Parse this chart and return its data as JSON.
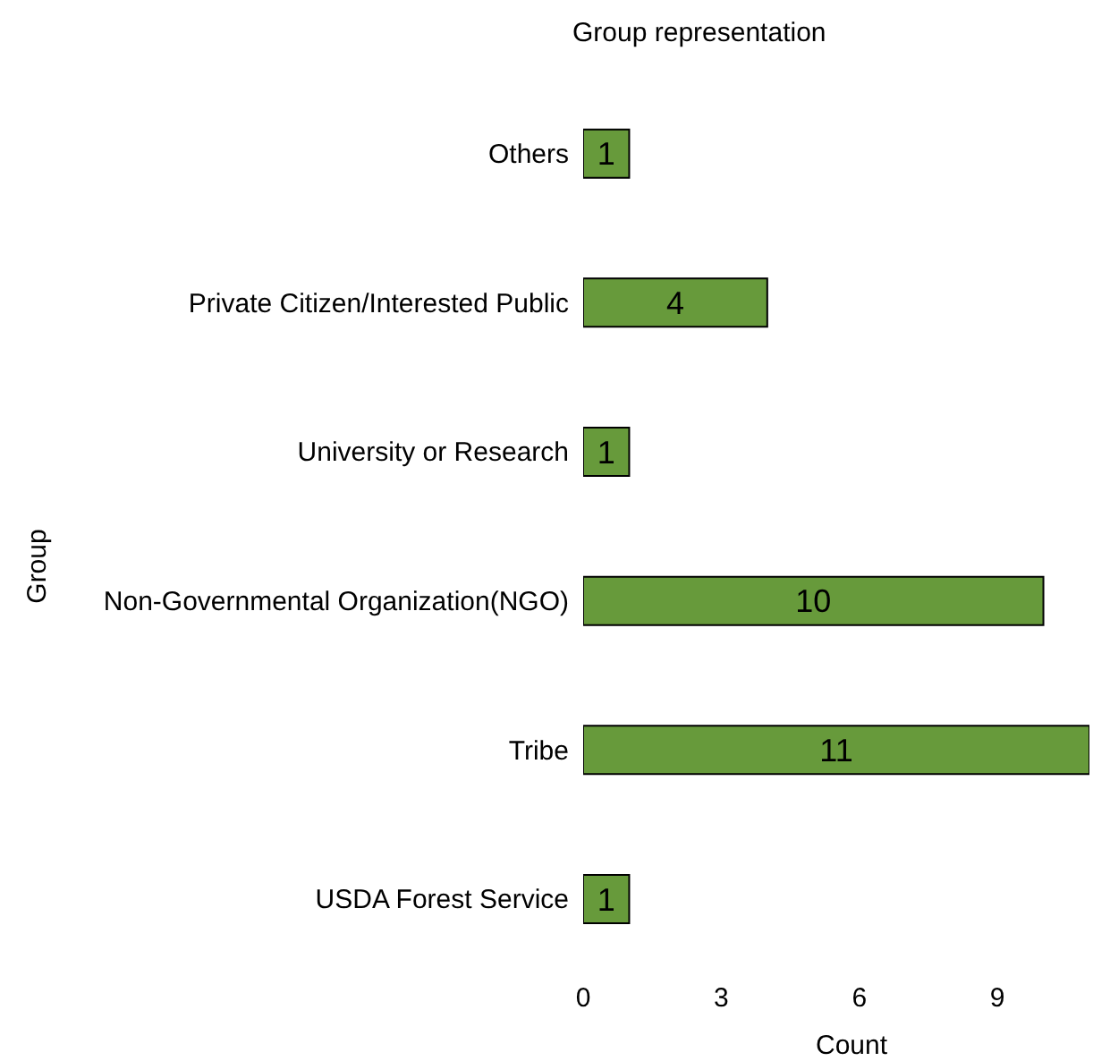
{
  "chart_data": {
    "type": "bar",
    "orientation": "horizontal",
    "title": "Group representation",
    "xlabel": "Count",
    "ylabel": "Group",
    "categories": [
      "Others",
      "Private Citizen/Interested Public",
      "University or Research",
      "Non-Governmental Organization(NGO)",
      "Tribe",
      "USDA Forest Service"
    ],
    "values": [
      1,
      4,
      1,
      10,
      11,
      1
    ],
    "color": "#679a3b",
    "xlim": [
      0,
      11
    ],
    "xticks": [
      0,
      3,
      6,
      9
    ],
    "data_labels": true,
    "grid": false,
    "legend": false
  }
}
